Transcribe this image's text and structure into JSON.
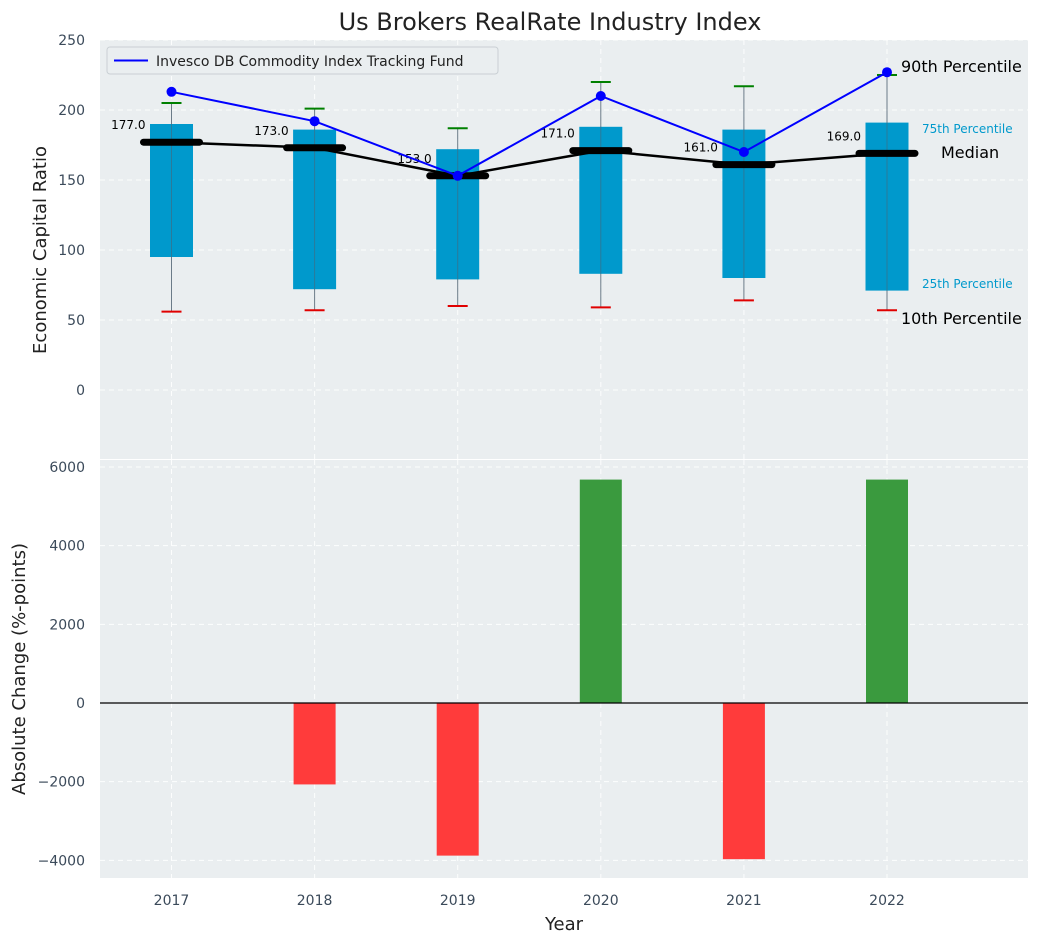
{
  "chart_data": [
    {
      "type": "box-percentile",
      "title": "Us Brokers RealRate Industry Index",
      "ylabel": "Economic Capital Ratio",
      "ylim": [
        -50,
        250
      ],
      "yticks": [
        0,
        50,
        100,
        150,
        200,
        250
      ],
      "categories": [
        "2017",
        "2018",
        "2019",
        "2020",
        "2021",
        "2022"
      ],
      "p10": [
        56,
        57,
        60,
        59,
        64,
        57
      ],
      "p25": [
        95,
        72,
        79,
        83,
        80,
        71
      ],
      "median": [
        177.0,
        173.0,
        153.0,
        171.0,
        161.0,
        169.0
      ],
      "median_labels": [
        "177.0",
        "173.0",
        "153.0",
        "171.0",
        "161.0",
        "169.0"
      ],
      "p75": [
        190,
        186,
        172,
        188,
        186,
        191
      ],
      "p90": [
        205,
        201,
        187,
        220,
        217,
        225
      ],
      "series": [
        {
          "name": "Invesco DB Commodity Index Tracking Fund",
          "values": [
            213,
            192,
            153,
            210,
            170,
            227
          ]
        }
      ],
      "annotations": {
        "p90": "90th Percentile",
        "p75": "75th Percentile",
        "median": "Median",
        "p25": "25th Percentile",
        "p10": "10th Percentile"
      },
      "legend_position": "top-left",
      "grid": true
    },
    {
      "type": "bar",
      "ylabel": "Absolute Change (%-points)",
      "xlabel": "Year",
      "ylim": [
        -4450,
        6200
      ],
      "yticks": [
        -4000,
        -2000,
        0,
        2000,
        4000,
        6000
      ],
      "ytick_labels": [
        "−4000",
        "−2000",
        "0",
        "2000",
        "4000",
        "6000"
      ],
      "categories": [
        "2017",
        "2018",
        "2019",
        "2020",
        "2021",
        "2022"
      ],
      "values": [
        0,
        -2070,
        -3880,
        5680,
        -3970,
        5680
      ],
      "grid": true
    }
  ],
  "colors": {
    "background": "#eaeef0",
    "box": "#0099cc",
    "line": "#0000ff",
    "median_line": "#000000",
    "whisker_top": "#008000",
    "whisker_bottom": "#e00000",
    "bar_positive": "#3a9a3e",
    "bar_negative": "#ff3b3b",
    "box_label": "#0099cc",
    "text": "#222222",
    "tick": "#3b4a5a"
  }
}
